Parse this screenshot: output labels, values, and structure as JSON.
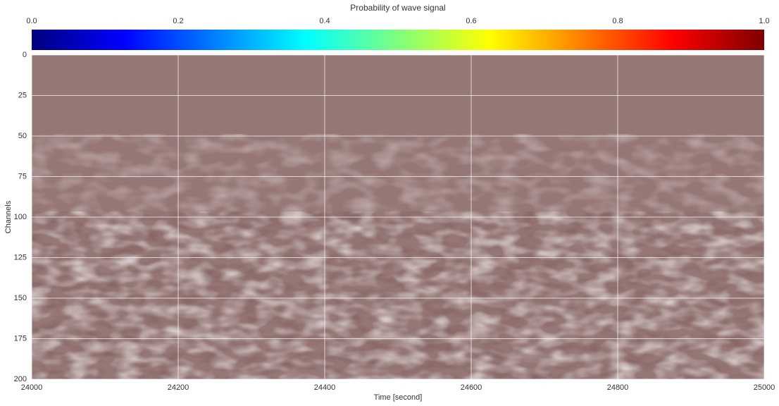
{
  "chart_data": {
    "type": "image",
    "xlabel": "Time [second]",
    "ylabel": "Channels",
    "xlim": [
      24000,
      25000
    ],
    "xticks": [
      24000,
      24200,
      24400,
      24600,
      24800,
      25000
    ],
    "ylim": [
      200,
      0
    ],
    "yticks": [
      0,
      25,
      50,
      75,
      100,
      125,
      150,
      175,
      200
    ],
    "grid": true,
    "colorbar": {
      "label": "Probability of wave signal",
      "lim": [
        0,
        1
      ],
      "ticks": [
        {
          "value": 0,
          "label": "0.0"
        },
        0.2,
        0.4,
        0.6,
        0.8,
        {
          "value": 1,
          "label": "1.0"
        }
      ],
      "colormap": [
        "#00007f",
        "#0000ff",
        "#007fff",
        "#00ffff",
        "#7fff7f",
        "#ffff00",
        "#ff7f00",
        "#ff0000",
        "#7f0000"
      ]
    }
  }
}
